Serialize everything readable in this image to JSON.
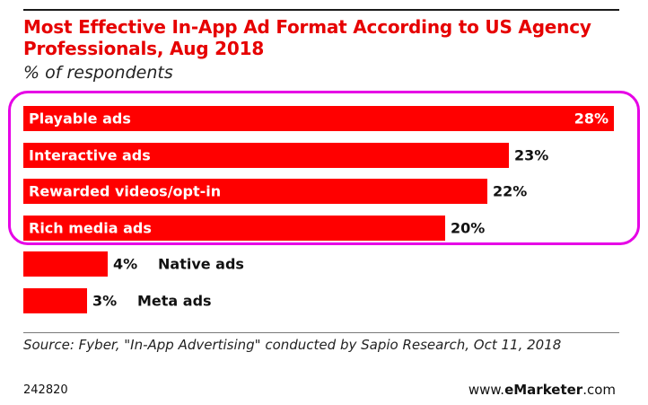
{
  "header": {
    "title": "Most Effective In-App Ad Format According to US Agency Professionals, Aug 2018",
    "subtitle": "% of respondents"
  },
  "chart_data": {
    "type": "bar",
    "orientation": "horizontal",
    "title": "Most Effective In-App Ad Format According to US Agency Professionals, Aug 2018",
    "subtitle": "% of respondents",
    "categories": [
      "Playable ads",
      "Interactive ads",
      "Rewarded videos/opt-in",
      "Rich media ads",
      "Native ads",
      "Meta ads"
    ],
    "values": [
      28,
      23,
      22,
      20,
      4,
      3
    ],
    "value_labels": [
      "28%",
      "23%",
      "22%",
      "20%",
      "4%",
      "3%"
    ],
    "unit": "%",
    "xlim": [
      0,
      28
    ],
    "grid": false,
    "legend": "none",
    "bar_color": "#ff0000"
  },
  "colors": {
    "title": "#e60000",
    "bar": "#ff0000",
    "highlight": "#e600e6"
  },
  "footer": {
    "source": "Source: Fyber, \"In-App Advertising\" conducted by Sapio Research, Oct 11, 2018",
    "chart_id": "242820",
    "brand_prefix": "www.",
    "brand_bold": "eMarketer",
    "brand_suffix": ".com"
  }
}
